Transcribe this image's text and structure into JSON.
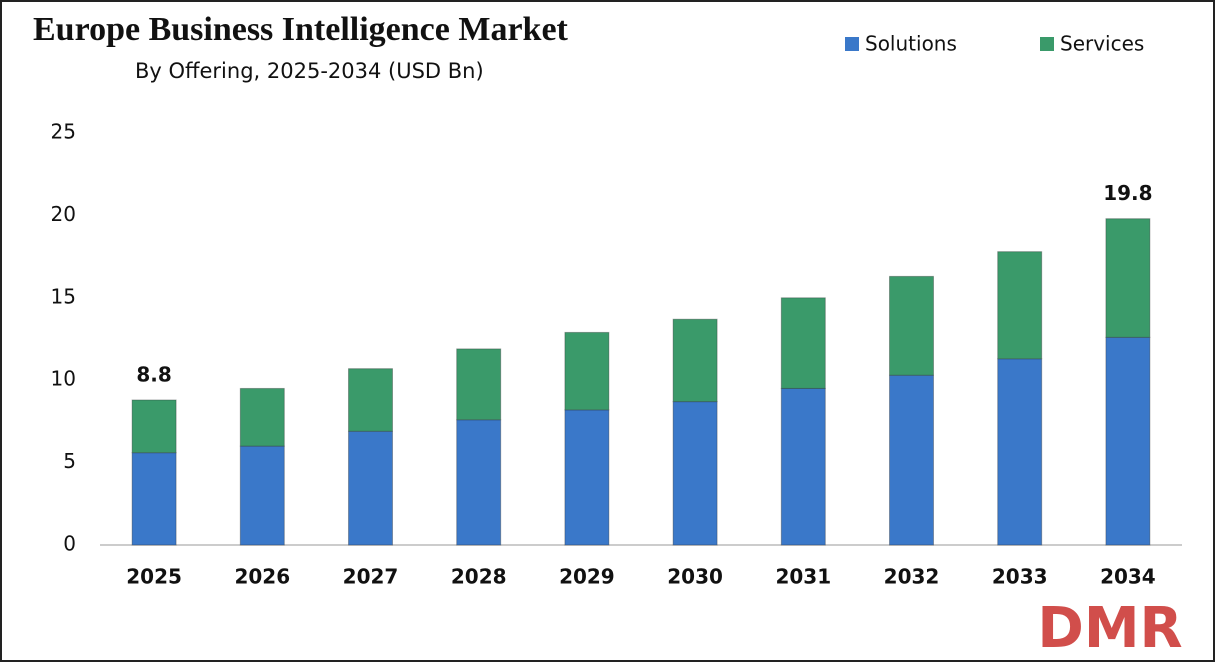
{
  "chart_data": {
    "type": "stacked_bar",
    "title": "Europe Business Intelligence Market",
    "subtitle": "By Offering, 2025-2034 (USD Bn)",
    "categories": [
      "2025",
      "2026",
      "2027",
      "2028",
      "2029",
      "2030",
      "2031",
      "2032",
      "2033",
      "2034"
    ],
    "series": [
      {
        "name": "Solutions",
        "color": "#3a78c9",
        "values": [
          5.6,
          6.0,
          6.9,
          7.6,
          8.2,
          8.7,
          9.5,
          10.3,
          11.3,
          12.6
        ]
      },
      {
        "name": "Services",
        "color": "#3a9a6a",
        "values": [
          3.2,
          3.5,
          3.8,
          4.3,
          4.7,
          5.0,
          5.5,
          6.0,
          6.5,
          7.2
        ]
      }
    ],
    "totals": [
      8.8,
      null,
      null,
      null,
      null,
      null,
      null,
      null,
      null,
      19.8
    ],
    "ylim": [
      0,
      25
    ],
    "yticks": [
      0,
      5,
      10,
      15,
      20,
      25
    ],
    "grid": false,
    "legend": "top-right",
    "watermark": "DMR"
  }
}
